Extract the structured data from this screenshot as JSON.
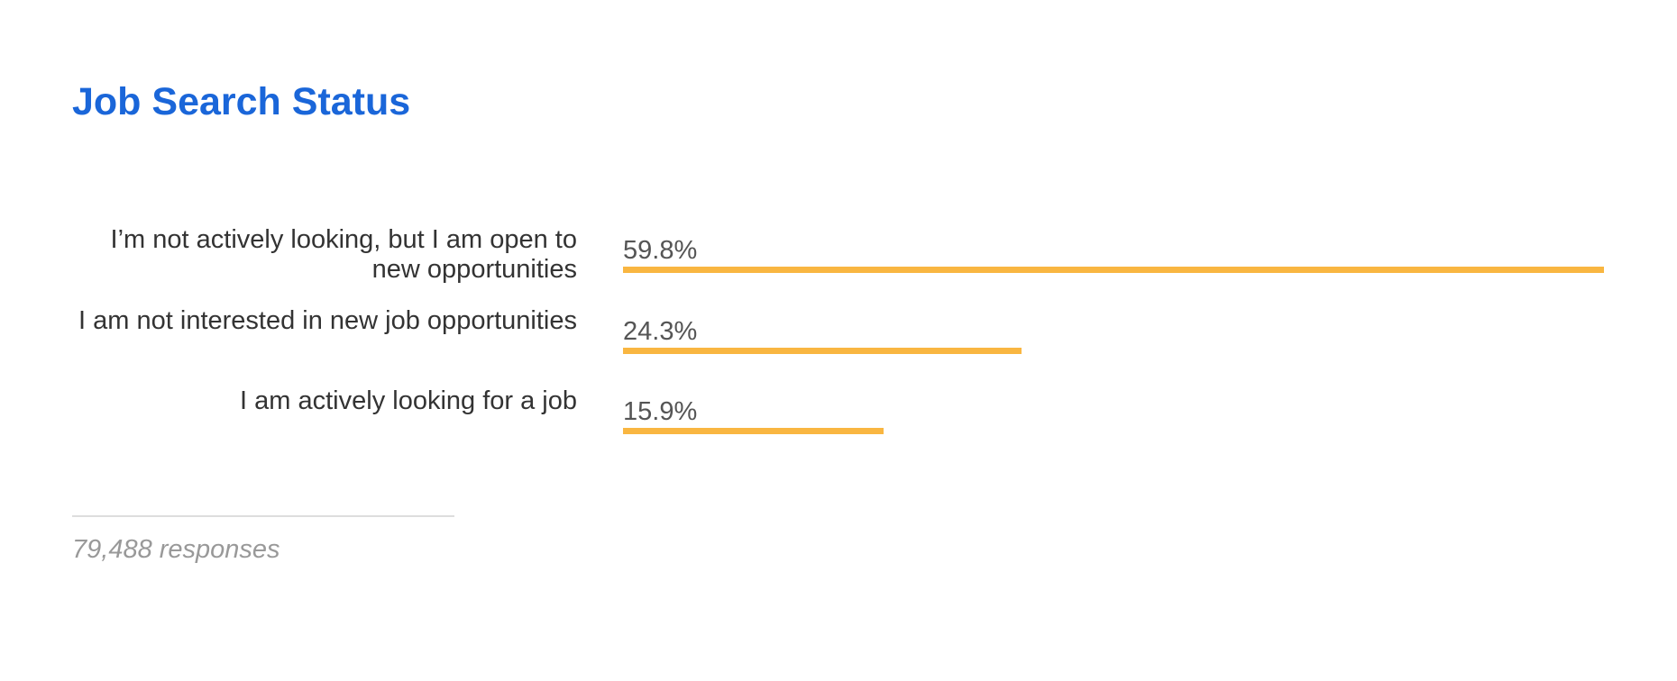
{
  "chart_data": {
    "type": "bar",
    "orientation": "horizontal",
    "title": "Job Search Status",
    "categories": [
      "I’m not actively looking, but I am open to new opportunities",
      "I am not interested in new job opportunities",
      "I am actively looking for a job"
    ],
    "values": [
      59.8,
      24.3,
      15.9
    ],
    "value_labels": [
      "59.8%",
      "24.3%",
      "15.9%"
    ],
    "color": "#f9b641",
    "footnote": "79,488 responses"
  }
}
